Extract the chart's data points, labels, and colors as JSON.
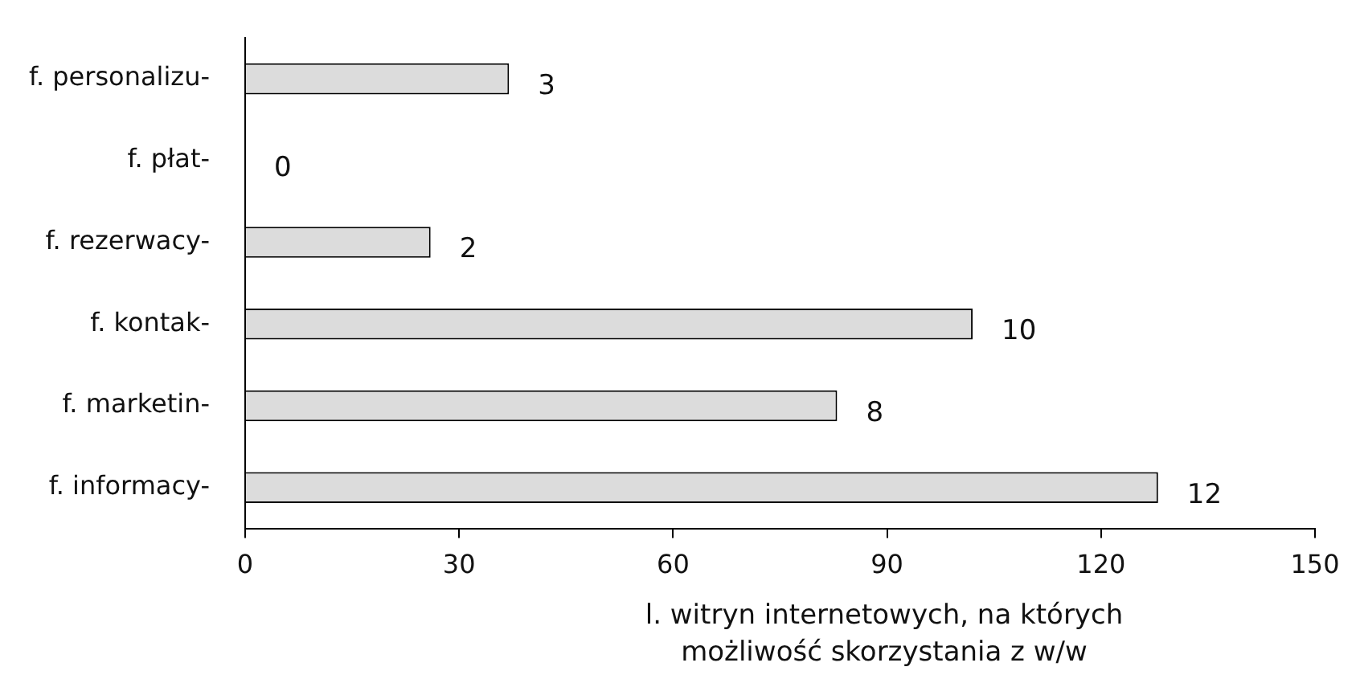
{
  "chart_data": {
    "type": "bar",
    "orientation": "horizontal",
    "xlabel": "l. witryn internetowych, na których możliwość skorzystania z w/w",
    "categories": [
      "f. personalizu-",
      "f. płat-",
      "f. rezerwacy-",
      "f. kontak-",
      "f. marketin-",
      "f. informacy-"
    ],
    "values": [
      37,
      0,
      26,
      102,
      83,
      128
    ],
    "annotations": [
      {
        "text": "3",
        "x": 37,
        "y": "f. personalizu-"
      },
      {
        "text": "0",
        "x": 0,
        "y": "f. płat-"
      },
      {
        "text": "2",
        "x": 26,
        "y": "f. rezerwacy-"
      },
      {
        "text": "10",
        "x": 102,
        "y": "f. kontak-"
      },
      {
        "text": "8",
        "x": 83,
        "y": "f. marketin-"
      },
      {
        "text": "12",
        "x": 128,
        "y": "f. informacy-"
      }
    ],
    "color": "#dcdcdc",
    "xlim": [
      0,
      150
    ],
    "xticks": [
      0,
      30,
      60,
      90,
      120,
      150
    ],
    "legend": false
  }
}
